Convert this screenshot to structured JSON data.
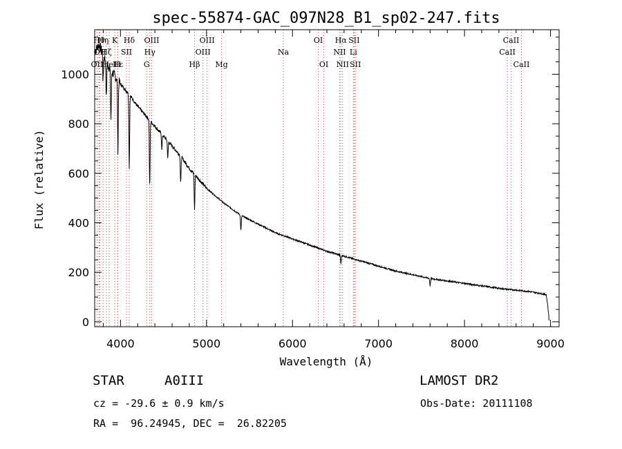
{
  "chart_data": {
    "type": "line",
    "title": "spec-55874-GAC_097N28_B1_sp02-247.fits",
    "xlabel": "Wavelength (Å)",
    "ylabel": "Flux (relative)",
    "xlim": [
      3700,
      9100
    ],
    "ylim": [
      -20,
      1180
    ],
    "xticks": [
      4000,
      5000,
      6000,
      7000,
      8000,
      9000
    ],
    "yticks": [
      0,
      200,
      400,
      600,
      800,
      1000
    ],
    "grid": false,
    "line_marks": [
      {
        "label": "OII",
        "wavelength": 3727,
        "row": 3
      },
      {
        "label": "Hθ",
        "wavelength": 3750,
        "row": 1
      },
      {
        "label": "OII",
        "wavelength": 3760,
        "row": 2
      },
      {
        "label": "Hη",
        "wavelength": 3798,
        "row": 1
      },
      {
        "label": "Hζ",
        "wavelength": 3835,
        "row": 2
      },
      {
        "label": "HeI",
        "wavelength": 3869,
        "row": 3
      },
      {
        "label": "K",
        "wavelength": 3934,
        "row": 1
      },
      {
        "label": "Hε",
        "wavelength": 3970,
        "row": 3
      },
      {
        "label": "H",
        "wavelength": 3968,
        "row": 3
      },
      {
        "label": "SII",
        "wavelength": 4070,
        "row": 2
      },
      {
        "label": "Hδ",
        "wavelength": 4102,
        "row": 1
      },
      {
        "label": "G",
        "wavelength": 4305,
        "row": 3
      },
      {
        "label": "Hγ",
        "wavelength": 4341,
        "row": 2
      },
      {
        "label": "OIII",
        "wavelength": 4363,
        "row": 1
      },
      {
        "label": "Hβ",
        "wavelength": 4861,
        "row": 3
      },
      {
        "label": "OIII",
        "wavelength": 4959,
        "row": 2
      },
      {
        "label": "OIII",
        "wavelength": 5007,
        "row": 1
      },
      {
        "label": "Mg",
        "wavelength": 5175,
        "row": 3
      },
      {
        "label": "Na",
        "wavelength": 5894,
        "row": 2
      },
      {
        "label": "OI",
        "wavelength": 6300,
        "row": 1
      },
      {
        "label": "OI",
        "wavelength": 6364,
        "row": 3
      },
      {
        "label": "NII",
        "wavelength": 6548,
        "row": 2
      },
      {
        "label": "Hα",
        "wavelength": 6563,
        "row": 1
      },
      {
        "label": "NII",
        "wavelength": 6583,
        "row": 3
      },
      {
        "label": "Li",
        "wavelength": 6708,
        "row": 2
      },
      {
        "label": "SII",
        "wavelength": 6716,
        "row": 1
      },
      {
        "label": "SII",
        "wavelength": 6731,
        "row": 3
      },
      {
        "label": "CaII",
        "wavelength": 8498,
        "row": 2
      },
      {
        "label": "CaII",
        "wavelength": 8542,
        "row": 1
      },
      {
        "label": "CaII",
        "wavelength": 8662,
        "row": 3
      }
    ],
    "spectrum_nodes": [
      [
        3700,
        1090
      ],
      [
        3750,
        1120
      ],
      [
        3800,
        1080
      ],
      [
        3850,
        1040
      ],
      [
        3900,
        1010
      ],
      [
        4000,
        960
      ],
      [
        4100,
        920
      ],
      [
        4200,
        870
      ],
      [
        4300,
        830
      ],
      [
        4400,
        790
      ],
      [
        4500,
        750
      ],
      [
        4600,
        710
      ],
      [
        4700,
        670
      ],
      [
        4800,
        620
      ],
      [
        4900,
        580
      ],
      [
        5000,
        540
      ],
      [
        5200,
        480
      ],
      [
        5400,
        430
      ],
      [
        5600,
        395
      ],
      [
        5800,
        360
      ],
      [
        6000,
        335
      ],
      [
        6200,
        310
      ],
      [
        6400,
        285
      ],
      [
        6600,
        265
      ],
      [
        6800,
        245
      ],
      [
        7000,
        225
      ],
      [
        7200,
        205
      ],
      [
        7400,
        190
      ],
      [
        7600,
        175
      ],
      [
        7800,
        165
      ],
      [
        8000,
        155
      ],
      [
        8200,
        145
      ],
      [
        8400,
        135
      ],
      [
        8600,
        128
      ],
      [
        8800,
        120
      ],
      [
        8950,
        110
      ],
      [
        8970,
        60
      ],
      [
        8985,
        0
      ]
    ],
    "absorption_lines": [
      [
        3798,
        110
      ],
      [
        3835,
        150
      ],
      [
        3889,
        200
      ],
      [
        3970,
        280
      ],
      [
        4102,
        300
      ],
      [
        4340,
        270
      ],
      [
        4481,
        60
      ],
      [
        4550,
        70
      ],
      [
        4700,
        110
      ],
      [
        4861,
        140
      ],
      [
        5400,
        60
      ],
      [
        6563,
        35
      ],
      [
        7600,
        30
      ]
    ]
  },
  "info": {
    "object_class": "STAR",
    "subclass": "A0III",
    "survey": "LAMOST DR2",
    "velocity": "cz = -29.6 ± 0.9 km/s",
    "obs_date": "Obs-Date: 20111108",
    "coords": "RA =  96.24945, DEC =  26.82205"
  }
}
